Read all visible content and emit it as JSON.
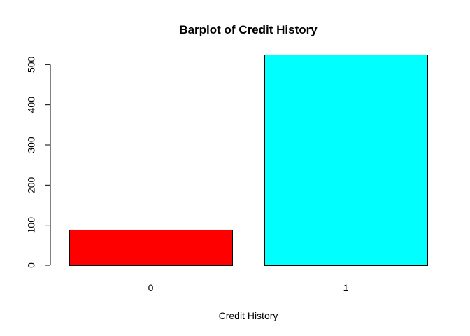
{
  "chart_data": {
    "type": "bar",
    "title": "Barplot of Credit History",
    "xlabel": "Credit History",
    "ylabel": "",
    "categories": [
      "0",
      "1"
    ],
    "values": [
      89,
      525
    ],
    "colors": [
      "#ff0000",
      "#00ffff"
    ],
    "ylim": [
      0,
      525
    ],
    "yticks": [
      0,
      100,
      200,
      300,
      400,
      500
    ],
    "grid": false,
    "legend": "none"
  }
}
